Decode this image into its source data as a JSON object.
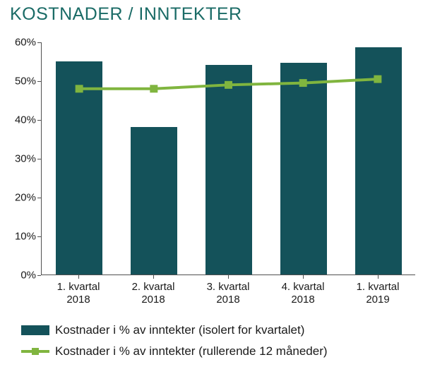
{
  "title": {
    "text": "KOSTNADER / INNTEKTER",
    "color": "#1a6b66",
    "fontsize": 25
  },
  "chart": {
    "type": "bar+line",
    "background_color": "#ffffff",
    "axis_color": "#505050",
    "categories": [
      "1. kvartal\n2018",
      "2. kvartal\n2018",
      "3. kvartal\n2018",
      "4. kvartal\n2018",
      "1. kvartal\n2019"
    ],
    "y": {
      "min": 0,
      "max": 60,
      "tick_step": 10,
      "tick_suffix": "%",
      "label_fontsize": 15
    },
    "bars": {
      "values": [
        55,
        38,
        54,
        54.5,
        58.5
      ],
      "color": "#14525a",
      "width_frac": 0.62
    },
    "line": {
      "values": [
        48,
        48,
        49,
        49.5,
        50.5
      ],
      "color": "#80b53f",
      "line_width": 4,
      "marker_size": 11,
      "marker_shape": "square"
    },
    "x_label_fontsize": 15
  },
  "legend": {
    "fontsize": 17,
    "items": [
      {
        "kind": "bar",
        "color": "#14525a",
        "label": "Kostnader i % av inntekter (isolert for kvartalet)"
      },
      {
        "kind": "line",
        "color": "#80b53f",
        "label": "Kostnader i % av inntekter (rullerende 12 måneder)"
      }
    ]
  }
}
